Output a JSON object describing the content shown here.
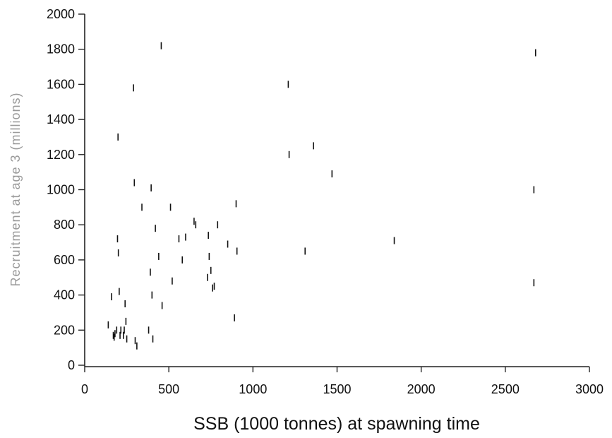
{
  "chart_data": {
    "type": "scatter",
    "title": "",
    "xlabel": "SSB (1000 tonnes) at spawning time",
    "ylabel": "Recruitment at age 3 (millions)",
    "xlim": [
      0,
      3000
    ],
    "ylim": [
      0,
      2000
    ],
    "x_ticks": [
      0,
      500,
      1000,
      1500,
      2000,
      2500,
      3000
    ],
    "y_ticks": [
      0,
      200,
      400,
      600,
      800,
      1000,
      1200,
      1400,
      1600,
      1800,
      2000
    ],
    "grid": false,
    "legend": "none",
    "marker": "vertical-dash",
    "points": [
      {
        "x": 140,
        "y": 230
      },
      {
        "x": 160,
        "y": 390
      },
      {
        "x": 170,
        "y": 170
      },
      {
        "x": 175,
        "y": 160
      },
      {
        "x": 180,
        "y": 180
      },
      {
        "x": 190,
        "y": 200
      },
      {
        "x": 195,
        "y": 720
      },
      {
        "x": 198,
        "y": 1300
      },
      {
        "x": 200,
        "y": 640
      },
      {
        "x": 205,
        "y": 420
      },
      {
        "x": 210,
        "y": 170
      },
      {
        "x": 215,
        "y": 200
      },
      {
        "x": 230,
        "y": 170
      },
      {
        "x": 235,
        "y": 200
      },
      {
        "x": 240,
        "y": 350
      },
      {
        "x": 245,
        "y": 250
      },
      {
        "x": 250,
        "y": 150
      },
      {
        "x": 290,
        "y": 1580
      },
      {
        "x": 295,
        "y": 1040
      },
      {
        "x": 300,
        "y": 140
      },
      {
        "x": 310,
        "y": 110
      },
      {
        "x": 340,
        "y": 900
      },
      {
        "x": 380,
        "y": 200
      },
      {
        "x": 390,
        "y": 530
      },
      {
        "x": 395,
        "y": 1010
      },
      {
        "x": 400,
        "y": 400
      },
      {
        "x": 405,
        "y": 150
      },
      {
        "x": 420,
        "y": 780
      },
      {
        "x": 440,
        "y": 620
      },
      {
        "x": 455,
        "y": 1820
      },
      {
        "x": 460,
        "y": 340
      },
      {
        "x": 510,
        "y": 900
      },
      {
        "x": 520,
        "y": 480
      },
      {
        "x": 560,
        "y": 720
      },
      {
        "x": 580,
        "y": 600
      },
      {
        "x": 600,
        "y": 730
      },
      {
        "x": 650,
        "y": 820
      },
      {
        "x": 660,
        "y": 800
      },
      {
        "x": 730,
        "y": 500
      },
      {
        "x": 735,
        "y": 740
      },
      {
        "x": 740,
        "y": 620
      },
      {
        "x": 750,
        "y": 540
      },
      {
        "x": 760,
        "y": 440
      },
      {
        "x": 770,
        "y": 450
      },
      {
        "x": 790,
        "y": 800
      },
      {
        "x": 850,
        "y": 690
      },
      {
        "x": 890,
        "y": 270
      },
      {
        "x": 900,
        "y": 920
      },
      {
        "x": 905,
        "y": 650
      },
      {
        "x": 1210,
        "y": 1600
      },
      {
        "x": 1215,
        "y": 1200
      },
      {
        "x": 1310,
        "y": 650
      },
      {
        "x": 1360,
        "y": 1250
      },
      {
        "x": 1470,
        "y": 1090
      },
      {
        "x": 1840,
        "y": 710
      },
      {
        "x": 2670,
        "y": 470
      },
      {
        "x": 2670,
        "y": 1000
      },
      {
        "x": 2680,
        "y": 1780
      }
    ]
  }
}
